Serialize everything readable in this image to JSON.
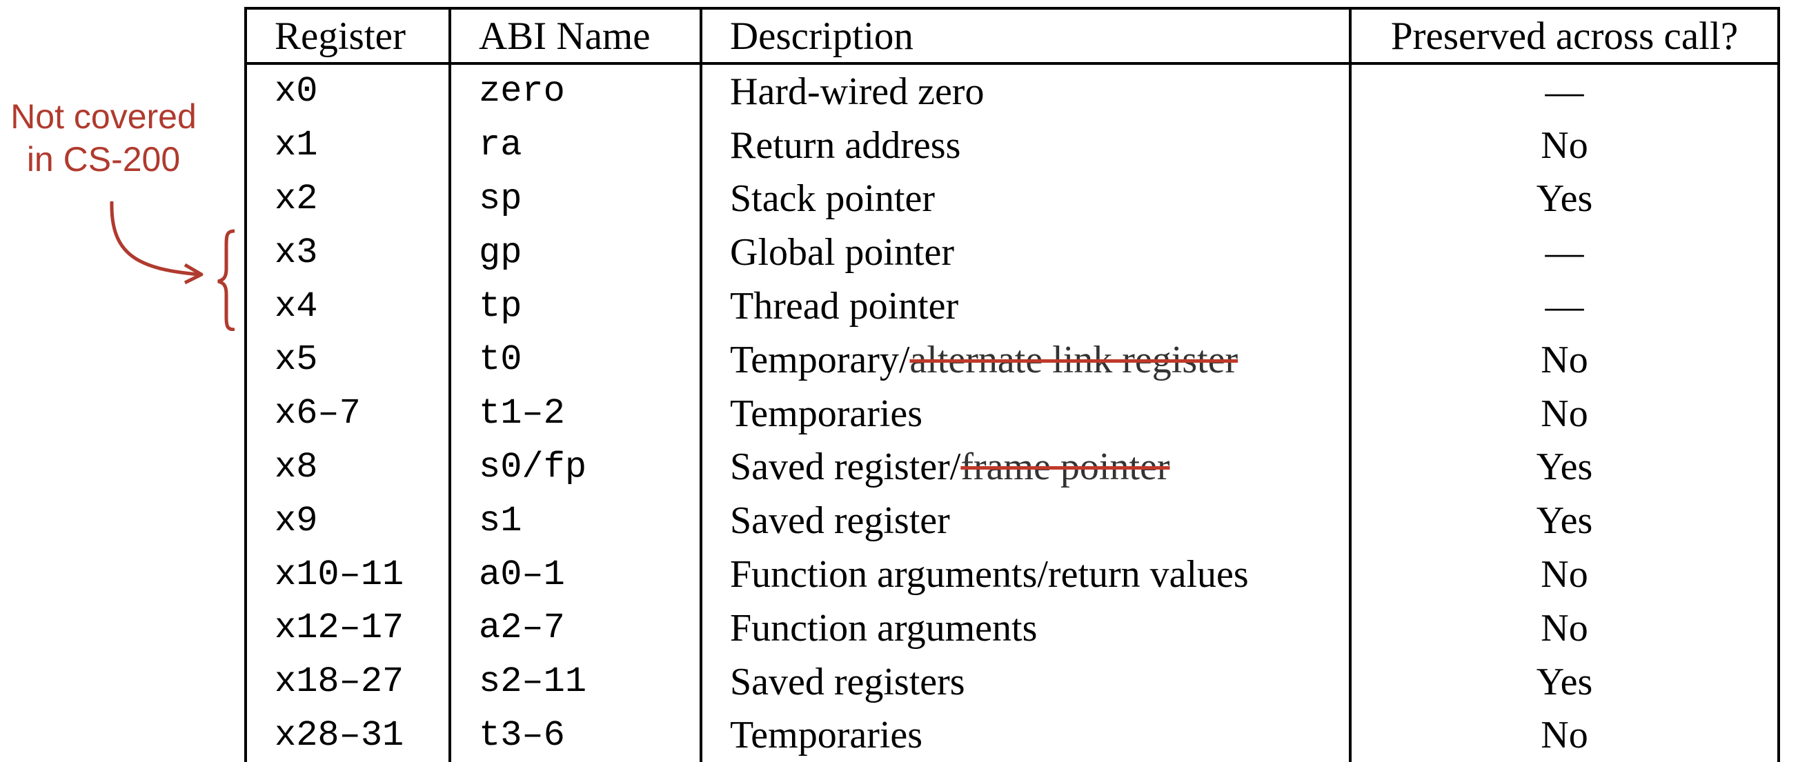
{
  "colors": {
    "annotation": "#b03a2e",
    "strike": "#c0392b",
    "text": "#000000"
  },
  "annotation": {
    "line1": "Not covered",
    "line2": "in CS-200"
  },
  "table": {
    "headers": [
      "Register",
      "ABI Name",
      "Description",
      "Preserved across call?"
    ],
    "rows": [
      {
        "register": "x0",
        "abi": "zero",
        "desc": "Hard-wired zero",
        "desc_struck": "",
        "preserved": "—"
      },
      {
        "register": "x1",
        "abi": "ra",
        "desc": "Return address",
        "desc_struck": "",
        "preserved": "No"
      },
      {
        "register": "x2",
        "abi": "sp",
        "desc": "Stack pointer",
        "desc_struck": "",
        "preserved": "Yes"
      },
      {
        "register": "x3",
        "abi": "gp",
        "desc": "Global pointer",
        "desc_struck": "",
        "preserved": "—"
      },
      {
        "register": "x4",
        "abi": "tp",
        "desc": "Thread pointer",
        "desc_struck": "",
        "preserved": "—"
      },
      {
        "register": "x5",
        "abi": "t0",
        "desc": "Temporary/",
        "desc_struck": "alternate link register",
        "preserved": "No"
      },
      {
        "register": "x6–7",
        "abi": "t1–2",
        "desc": "Temporaries",
        "desc_struck": "",
        "preserved": "No"
      },
      {
        "register": "x8",
        "abi": "s0/fp",
        "desc": "Saved register/",
        "desc_struck": "frame pointer",
        "preserved": "Yes"
      },
      {
        "register": "x9",
        "abi": "s1",
        "desc": "Saved register",
        "desc_struck": "",
        "preserved": "Yes"
      },
      {
        "register": "x10–11",
        "abi": "a0–1",
        "desc": "Function arguments/return values",
        "desc_struck": "",
        "preserved": "No"
      },
      {
        "register": "x12–17",
        "abi": "a2–7",
        "desc": "Function arguments",
        "desc_struck": "",
        "preserved": "No"
      },
      {
        "register": "x18–27",
        "abi": "s2–11",
        "desc": "Saved registers",
        "desc_struck": "",
        "preserved": "Yes"
      },
      {
        "register": "x28–31",
        "abi": "t3–6",
        "desc": "Temporaries",
        "desc_struck": "",
        "preserved": "No"
      }
    ]
  }
}
